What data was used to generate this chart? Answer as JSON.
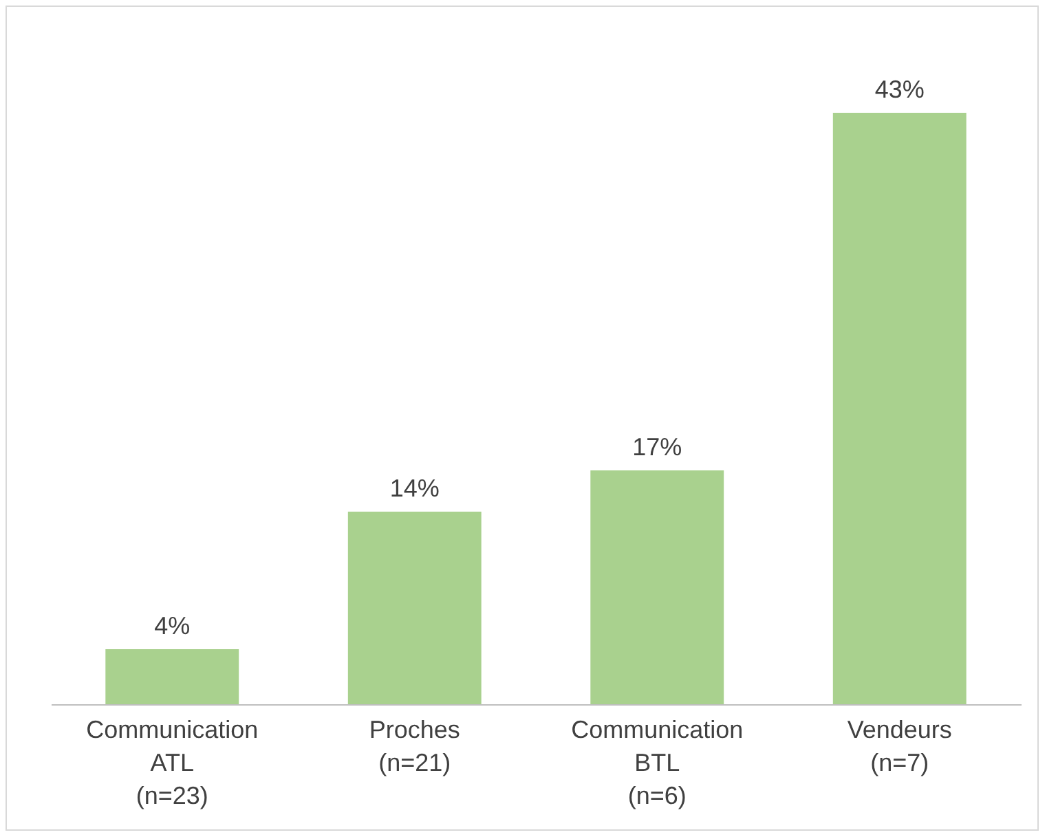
{
  "chart_data": {
    "type": "bar",
    "categories": [
      "Communication\nATL\n(n=23)",
      "Proches\n(n=21)",
      "Communication\nBTL\n(n=6)",
      "Vendeurs\n(n=7)"
    ],
    "values": [
      4,
      14,
      17,
      43
    ],
    "value_labels": [
      "4%",
      "14%",
      "17%",
      "43%"
    ],
    "color": "#a9d18e"
  }
}
